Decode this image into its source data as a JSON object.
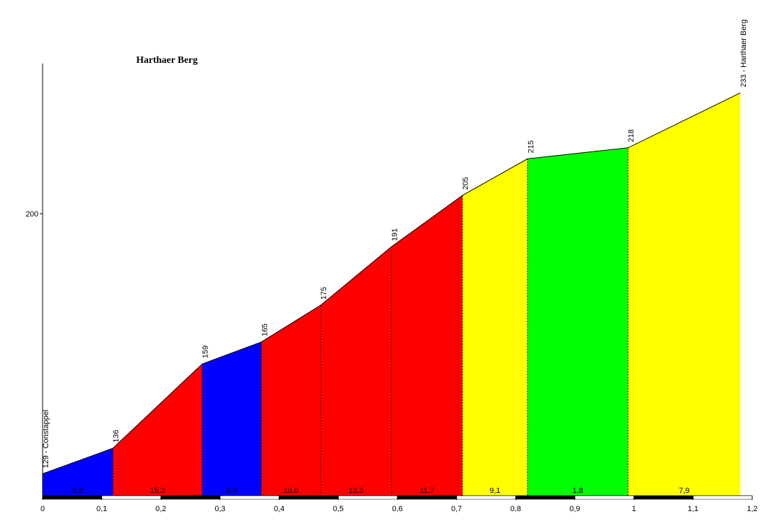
{
  "chart_data": {
    "type": "area",
    "title": "Harthaer Berg",
    "x": [
      0,
      0.119,
      0.27,
      0.37,
      0.47,
      0.59,
      0.71,
      0.82,
      0.99,
      1.18
    ],
    "values": [
      129,
      136,
      159,
      165,
      175,
      191,
      205,
      215,
      218,
      233
    ],
    "value_labels": [
      "129 - Constappel",
      "136",
      "159",
      "165",
      "175",
      "191",
      "205",
      "215",
      "218",
      "233 - Harthaer Berg"
    ],
    "segments": {
      "grades": [
        5.8,
        15.3,
        6.0,
        10.0,
        13.3,
        11.7,
        9.1,
        1.8,
        7.9
      ],
      "grade_labels": [
        "5,8",
        "15,3",
        "6,0",
        "10,0",
        "13,3",
        "11,7",
        "9,1",
        "1,8",
        "7,9"
      ],
      "colors": [
        "#0000ff",
        "#ff0000",
        "#0000ff",
        "#ff0000",
        "#ff0000",
        "#ff0000",
        "#ffff00",
        "#00ff00",
        "#ffff00"
      ]
    },
    "xlim": [
      0,
      1.2
    ],
    "xticks": [
      0,
      {
        "value": 0.1,
        "label": "0,1"
      },
      {
        "value": 0.2,
        "label": "0,2"
      },
      {
        "value": 0.3,
        "label": "0,3"
      },
      {
        "value": 0.4,
        "label": "0,4"
      },
      {
        "value": 0.5,
        "label": "0,5"
      },
      {
        "value": 0.6,
        "label": "0,6"
      },
      {
        "value": 0.7,
        "label": "0,7"
      },
      {
        "value": 0.8,
        "label": "0,8"
      },
      {
        "value": 0.9,
        "label": "0,9"
      },
      1,
      {
        "value": 1.1,
        "label": "1,1"
      },
      {
        "value": 1.2,
        "label": "1,2"
      }
    ],
    "ylim": [
      123,
      241
    ],
    "yticks": [
      200
    ]
  }
}
